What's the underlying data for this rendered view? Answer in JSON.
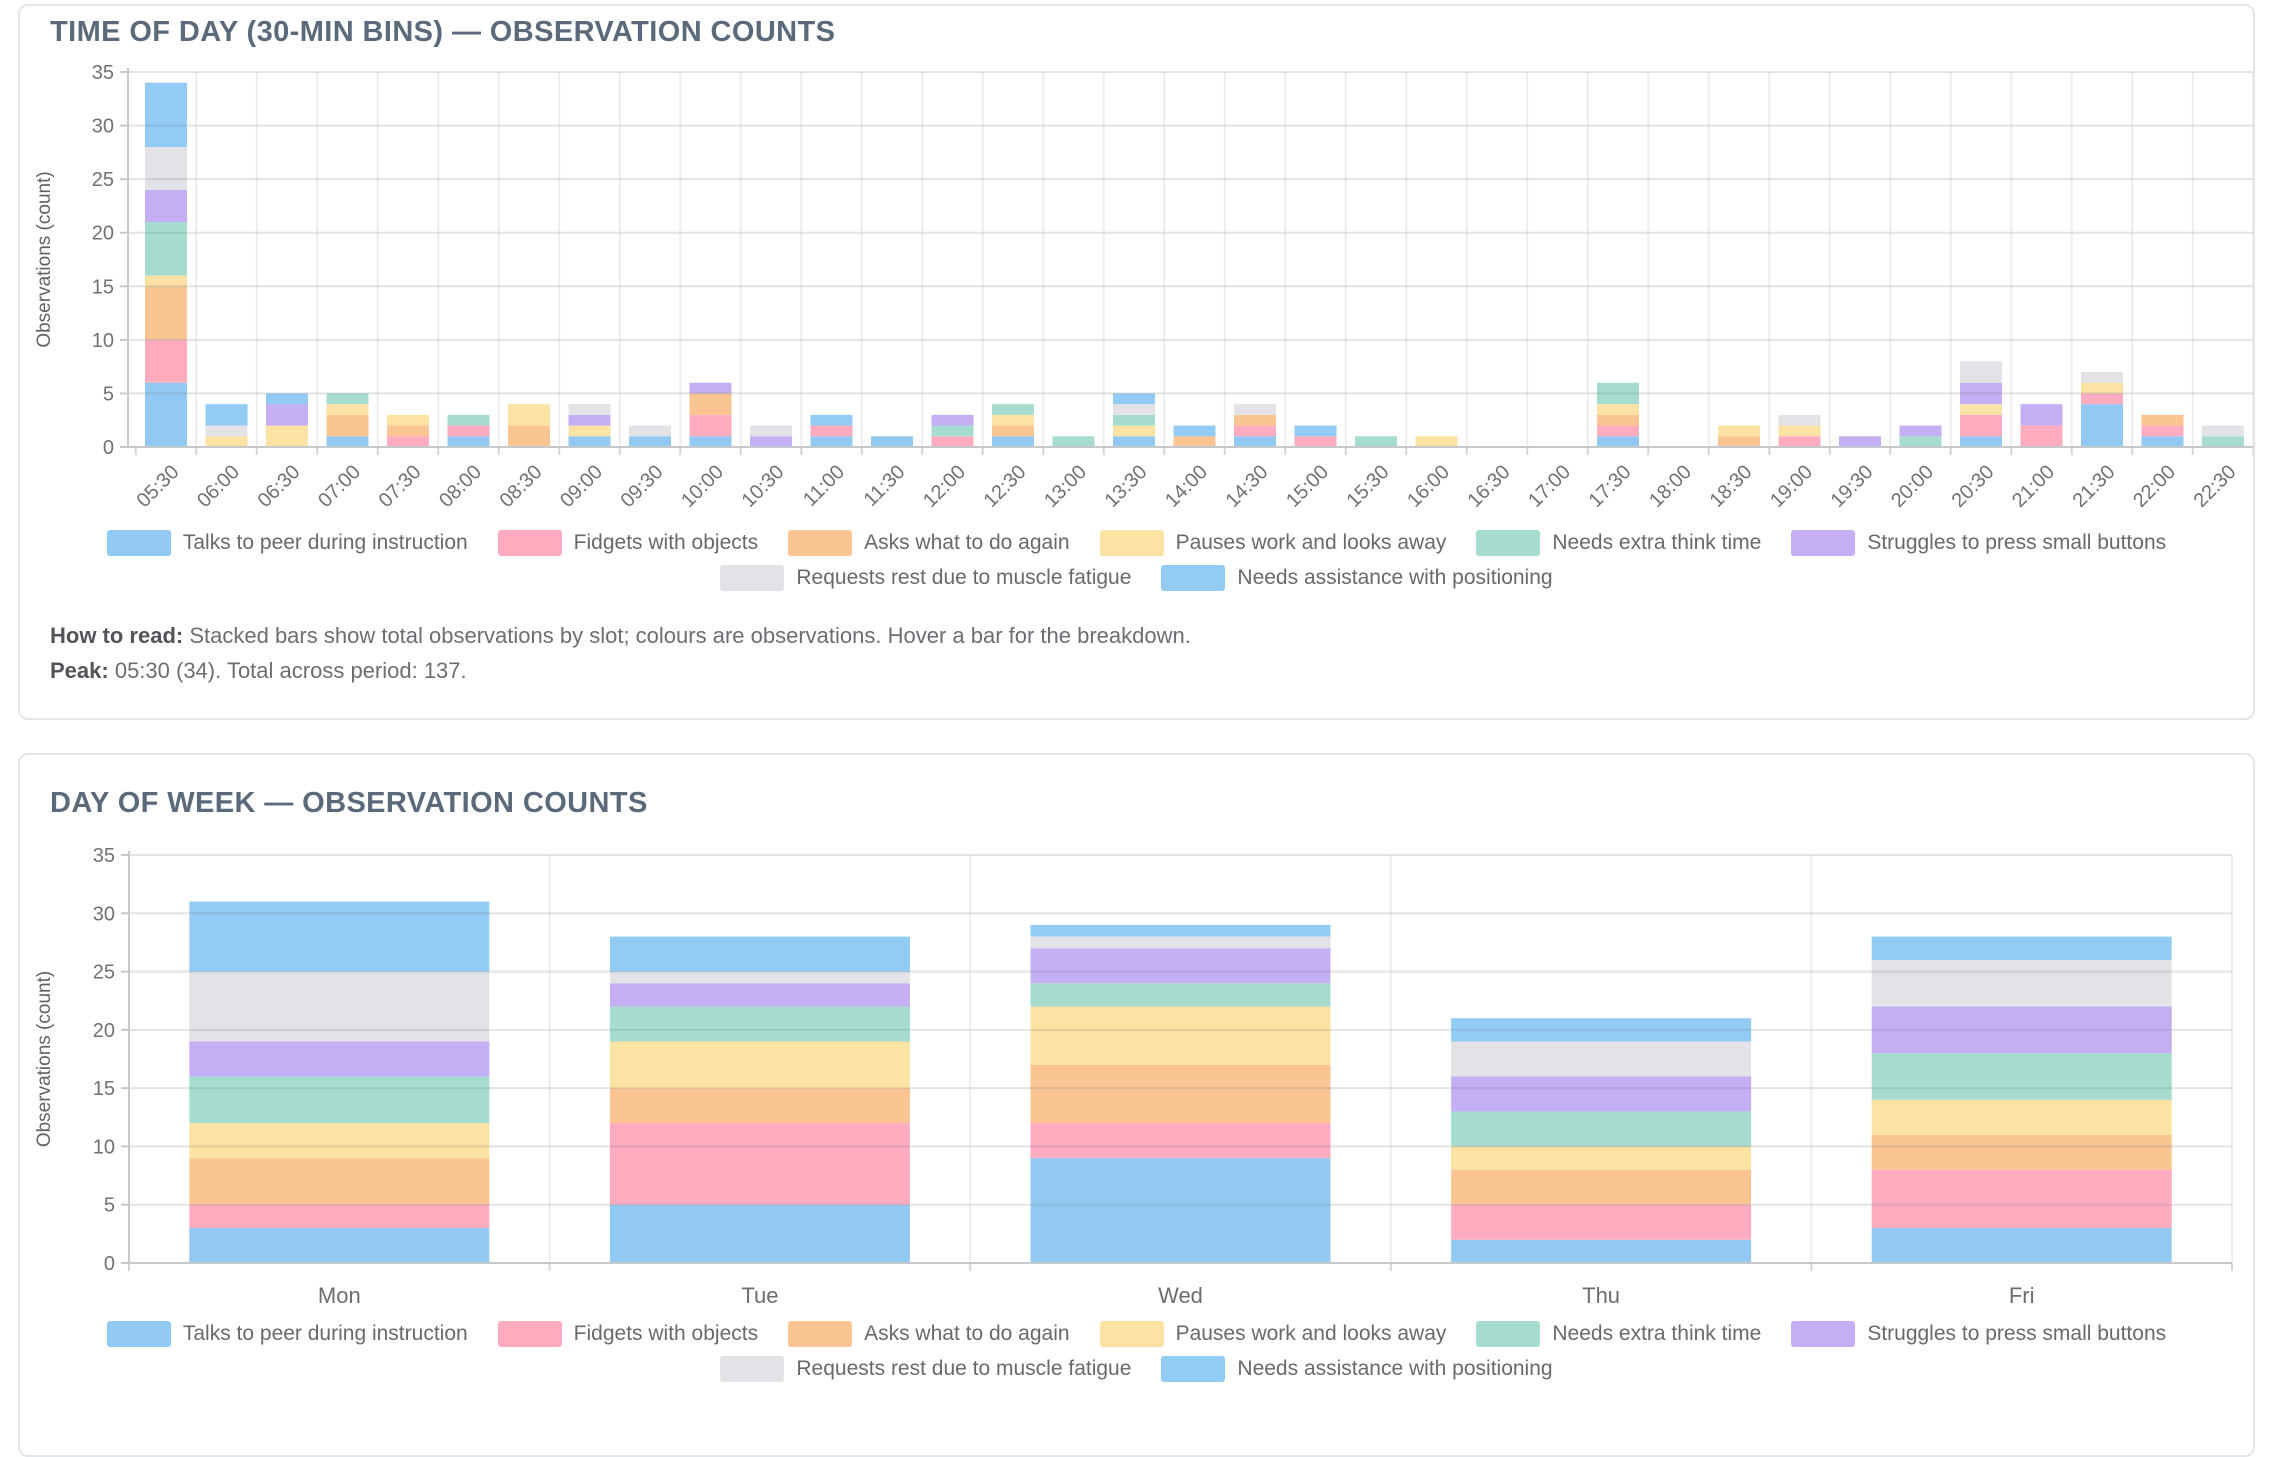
{
  "cards": [
    {
      "title": "TIME OF DAY (30-MIN BINS) — OBSERVATION COUNTS",
      "notes": {
        "how_to_read_label": "How to read:",
        "how_to_read_text": " Stacked bars show total observations by slot; colours are observations. Hover a bar for the breakdown.",
        "peak_label": "Peak:",
        "peak_text": " 05:30 (34). Total across period: 137."
      }
    },
    {
      "title": "DAY OF WEEK — OBSERVATION COUNTS"
    }
  ],
  "chart_data": [
    {
      "type": "bar",
      "stacked": true,
      "title": "TIME OF DAY (30-MIN BINS) — OBSERVATION COUNTS",
      "ylabel": "Observations (count)",
      "ylim": [
        0,
        35
      ],
      "ytick_step": 5,
      "grid": true,
      "legend_position": "bottom",
      "peak_category": "05:30",
      "peak_value": 34,
      "total": 137,
      "categories": [
        "05:30",
        "06:00",
        "06:30",
        "07:00",
        "07:30",
        "08:00",
        "08:30",
        "09:00",
        "09:30",
        "10:00",
        "10:30",
        "11:00",
        "11:30",
        "12:00",
        "12:30",
        "13:00",
        "13:30",
        "14:00",
        "14:30",
        "15:00",
        "15:30",
        "16:00",
        "16:30",
        "17:00",
        "17:30",
        "18:00",
        "18:30",
        "19:00",
        "19:30",
        "20:00",
        "20:30",
        "21:00",
        "21:30",
        "22:00",
        "22:30"
      ],
      "series": [
        {
          "name": "Talks to peer during instruction",
          "color": "#92C9F2",
          "values": [
            6,
            0,
            0,
            1,
            0,
            1,
            0,
            1,
            1,
            1,
            0,
            1,
            1,
            0,
            1,
            0,
            1,
            0,
            1,
            0,
            0,
            0,
            0,
            0,
            1,
            0,
            0,
            0,
            0,
            0,
            1,
            0,
            4,
            1,
            0
          ]
        },
        {
          "name": "Fidgets with objects",
          "color": "#FFABC0",
          "values": [
            4,
            0,
            0,
            0,
            1,
            1,
            0,
            0,
            0,
            2,
            0,
            1,
            0,
            1,
            0,
            0,
            0,
            0,
            1,
            1,
            0,
            0,
            0,
            0,
            1,
            0,
            0,
            1,
            0,
            0,
            2,
            2,
            1,
            1,
            0
          ]
        },
        {
          "name": "Asks what to do again",
          "color": "#FAC493",
          "values": [
            5,
            0,
            0,
            2,
            1,
            0,
            2,
            0,
            0,
            2,
            0,
            0,
            0,
            0,
            1,
            0,
            0,
            1,
            1,
            0,
            0,
            0,
            0,
            0,
            1,
            0,
            1,
            0,
            0,
            0,
            0,
            0,
            0,
            1,
            0
          ]
        },
        {
          "name": "Pauses work and looks away",
          "color": "#FCE3A3",
          "values": [
            1,
            1,
            2,
            1,
            1,
            0,
            2,
            1,
            0,
            0,
            0,
            0,
            0,
            0,
            1,
            0,
            1,
            0,
            0,
            0,
            0,
            1,
            0,
            0,
            1,
            0,
            1,
            1,
            0,
            0,
            1,
            0,
            1,
            0,
            0
          ]
        },
        {
          "name": "Needs extra think time",
          "color": "#A6DCD0",
          "values": [
            5,
            0,
            0,
            1,
            0,
            1,
            0,
            0,
            0,
            0,
            0,
            0,
            0,
            1,
            1,
            1,
            1,
            0,
            0,
            0,
            1,
            0,
            0,
            0,
            2,
            0,
            0,
            0,
            0,
            1,
            0,
            0,
            0,
            0,
            1
          ]
        },
        {
          "name": "Struggles to press small buttons",
          "color": "#C4AEF4",
          "values": [
            3,
            0,
            2,
            0,
            0,
            0,
            0,
            1,
            0,
            1,
            1,
            0,
            0,
            1,
            0,
            0,
            0,
            0,
            0,
            0,
            0,
            0,
            0,
            0,
            0,
            0,
            0,
            0,
            1,
            1,
            2,
            2,
            0,
            0,
            0
          ]
        },
        {
          "name": "Requests rest due to muscle fatigue",
          "color": "#E3E3E7",
          "values": [
            4,
            1,
            0,
            0,
            0,
            0,
            0,
            1,
            1,
            0,
            1,
            0,
            0,
            0,
            0,
            0,
            1,
            0,
            1,
            0,
            0,
            0,
            0,
            0,
            0,
            0,
            0,
            1,
            0,
            0,
            2,
            0,
            1,
            0,
            1
          ]
        },
        {
          "name": "Needs assistance with positioning",
          "color": "#92CBF4",
          "values": [
            6,
            2,
            1,
            0,
            0,
            0,
            0,
            0,
            0,
            0,
            0,
            1,
            0,
            0,
            0,
            0,
            1,
            1,
            0,
            1,
            0,
            0,
            0,
            0,
            0,
            0,
            0,
            0,
            0,
            0,
            0,
            0,
            0,
            0,
            0
          ]
        }
      ]
    },
    {
      "type": "bar",
      "stacked": true,
      "title": "DAY OF WEEK — OBSERVATION COUNTS",
      "ylabel": "Observations (count)",
      "ylim": [
        0,
        35
      ],
      "ytick_step": 5,
      "grid": true,
      "legend_position": "bottom",
      "categories": [
        "Mon",
        "Tue",
        "Wed",
        "Thu",
        "Fri"
      ],
      "series": [
        {
          "name": "Talks to peer during instruction",
          "color": "#92C9F2",
          "values": [
            3,
            5,
            9,
            2,
            3
          ]
        },
        {
          "name": "Fidgets with objects",
          "color": "#FFABC0",
          "values": [
            2,
            7,
            3,
            3,
            5
          ]
        },
        {
          "name": "Asks what to do again",
          "color": "#FAC493",
          "values": [
            4,
            3,
            5,
            3,
            3
          ]
        },
        {
          "name": "Pauses work and looks away",
          "color": "#FCE3A3",
          "values": [
            3,
            4,
            5,
            2,
            3
          ]
        },
        {
          "name": "Needs extra think time",
          "color": "#A6DCD0",
          "values": [
            4,
            3,
            2,
            3,
            4
          ]
        },
        {
          "name": "Struggles to press small buttons",
          "color": "#C4AEF4",
          "values": [
            3,
            2,
            3,
            3,
            4
          ]
        },
        {
          "name": "Requests rest due to muscle fatigue",
          "color": "#E3E3E7",
          "values": [
            6,
            1,
            1,
            3,
            4
          ]
        },
        {
          "name": "Needs assistance with positioning",
          "color": "#92CBF4",
          "values": [
            6,
            3,
            1,
            2,
            2
          ]
        }
      ]
    }
  ]
}
